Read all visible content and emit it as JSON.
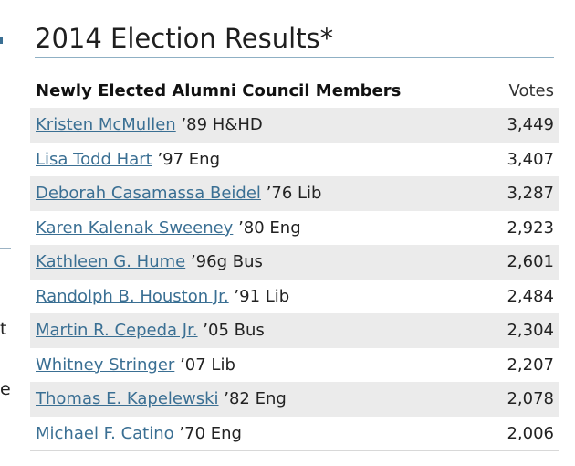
{
  "page": {
    "title": "2014 Election Results*"
  },
  "left_edge": {
    "fragments": [
      "t",
      "e"
    ]
  },
  "results_table": {
    "headers": {
      "members": "Newly Elected Alumni Council Members",
      "votes": "Votes"
    },
    "rows": [
      {
        "name": "Kristen McMullen",
        "detail": "’89 H&HD",
        "votes": "3,449"
      },
      {
        "name": "Lisa Todd Hart",
        "detail": "’97 Eng",
        "votes": "3,407"
      },
      {
        "name": "Deborah Casamassa Beidel",
        "detail": "’76 Lib",
        "votes": "3,287"
      },
      {
        "name": "Karen Kalenak Sweeney",
        "detail": "’80 Eng",
        "votes": "2,923"
      },
      {
        "name": "Kathleen G. Hume",
        "detail": "’96g Bus",
        "votes": "2,601"
      },
      {
        "name": "Randolph B. Houston Jr.",
        "detail": "’91 Lib",
        "votes": "2,484"
      },
      {
        "name": "Martin R. Cepeda Jr.",
        "detail": "’05 Bus",
        "votes": "2,304"
      },
      {
        "name": "Whitney Stringer",
        "detail": "’07 Lib",
        "votes": "2,207"
      },
      {
        "name": "Thomas E. Kapelewski",
        "detail": "’82 Eng",
        "votes": "2,078"
      },
      {
        "name": "Michael F. Catino",
        "detail": "’70 Eng",
        "votes": "2,006"
      }
    ]
  }
}
